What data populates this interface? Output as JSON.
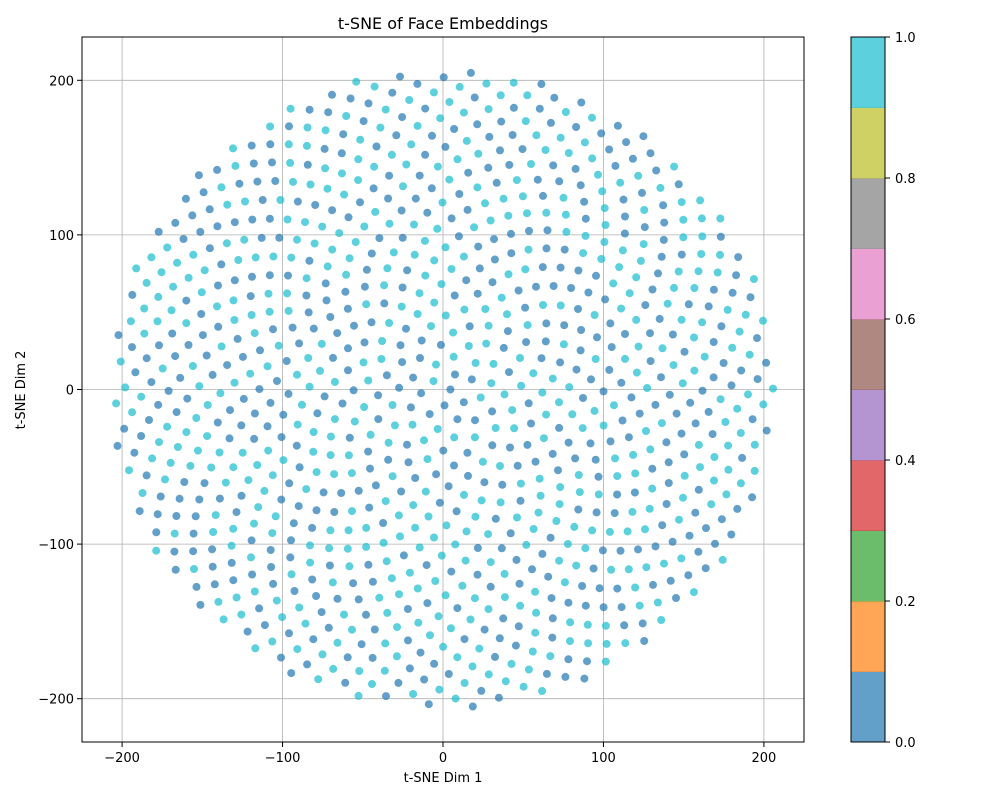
{
  "chart_data": {
    "type": "scatter",
    "title": "t-SNE of Face Embeddings",
    "xlabel": "t-SNE Dim 1",
    "ylabel": "t-SNE Dim 2",
    "xlim": [
      -225,
      225
    ],
    "ylim": [
      -228,
      228
    ],
    "xticks": [
      -200,
      -100,
      0,
      100,
      200
    ],
    "yticks": [
      -200,
      -100,
      0,
      100,
      200
    ],
    "grid": true,
    "legend": "none",
    "point_count": 1000,
    "cloud_radius": 207,
    "label_values": [
      0.0,
      1.0
    ],
    "label_mix_fraction_label1": 0.5,
    "colorbar": {
      "range": [
        0.0,
        1.0
      ],
      "ticks": [
        "0.0",
        "0.2",
        "0.4",
        "0.6",
        "0.8",
        "1.0"
      ],
      "colormap": "tab10",
      "colors": [
        "#1f77b4",
        "#ff7f0e",
        "#2ca02c",
        "#d62728",
        "#9467bd",
        "#8c564b",
        "#e377c2",
        "#7f7f7f",
        "#bcbd22",
        "#17becf"
      ]
    },
    "point_colors": {
      "label0": "#1f77b4",
      "label1": "#17becf"
    },
    "point_alpha": 0.7
  }
}
